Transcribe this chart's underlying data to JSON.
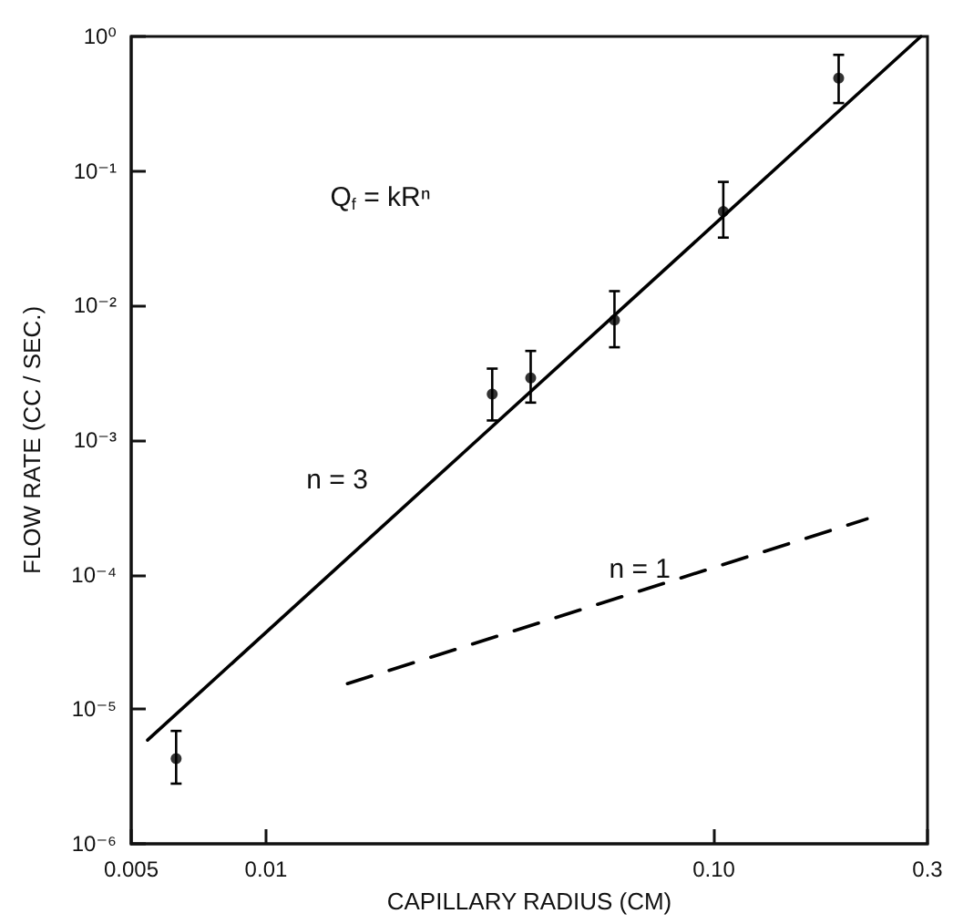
{
  "chart_data": {
    "type": "scatter",
    "xlabel": "CAPILLARY RADIUS (CM)",
    "ylabel": "FLOW RATE (CC / SEC.)",
    "log": "xy",
    "grid": false,
    "xlim": [
      0.005,
      0.3
    ],
    "ylim": [
      1e-06,
      1
    ],
    "xticks": [
      {
        "value": 0.005,
        "label": "0.005"
      },
      {
        "value": 0.01,
        "label": "0.01"
      },
      {
        "value": 0.1,
        "label": "0.10"
      },
      {
        "value": 0.3,
        "label": "0.3"
      }
    ],
    "yticks": [
      {
        "value": 1e-06,
        "label": "10⁻⁶"
      },
      {
        "value": 1e-05,
        "label": "10⁻⁵"
      },
      {
        "value": 0.0001,
        "label": "10⁻⁴"
      },
      {
        "value": 0.001,
        "label": "10⁻³"
      },
      {
        "value": 0.01,
        "label": "10⁻²"
      },
      {
        "value": 0.1,
        "label": "10⁻¹"
      },
      {
        "value": 1,
        "label": "10⁰"
      }
    ],
    "annotations": [
      "Q$_{f}$ = kRⁿ",
      "n = 3",
      "n = 1"
    ],
    "series": [
      {
        "color": "#000000",
        "marker": "circle",
        "x": [
          0.0063,
          0.032,
          0.039,
          0.06,
          0.105,
          0.19
        ],
        "values": [
          4.3e-06,
          0.0022,
          0.0029,
          0.0078,
          0.05,
          0.49
        ],
        "errors": [
          [
            2.8e-06,
            6.9e-06
          ],
          [
            0.0014,
            0.0034
          ],
          [
            0.0019,
            0.0046
          ],
          [
            0.0049,
            0.0128
          ],
          [
            0.032,
            0.083
          ],
          [
            0.32,
            0.73
          ]
        ]
      },
      {
        "type": "line",
        "color": "#000000",
        "marker": "none",
        "line_style": "solid",
        "x": [
          0.00544,
          0.29
        ],
        "values": [
          5.9e-06,
          1.0
        ]
      },
      {
        "type": "line",
        "color": "#000000",
        "marker": "none",
        "line_style": "dashed",
        "x": [
          0.0152,
          0.22
        ],
        "values": [
          1.55e-05,
          0.00026
        ]
      }
    ]
  }
}
